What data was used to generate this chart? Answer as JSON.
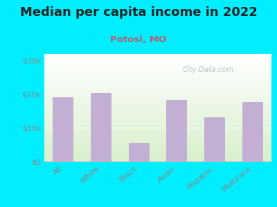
{
  "title": "Median per capita income in 2022",
  "subtitle": "Potosi, MO",
  "categories": [
    "All",
    "White",
    "Black",
    "Asian",
    "Hispanic",
    "Multirace"
  ],
  "values": [
    19000,
    20300,
    5500,
    18200,
    13200,
    17700
  ],
  "bar_color": "#c4afd4",
  "background_outer": "#00eeff",
  "title_color": "#222222",
  "subtitle_color": "#b06070",
  "tick_color": "#888888",
  "ylim": [
    0,
    32000
  ],
  "yticks": [
    0,
    10000,
    20000,
    30000
  ],
  "ytick_labels": [
    "$0",
    "$10k",
    "$20k",
    "$30k"
  ],
  "watermark": "City-Data.com",
  "title_fontsize": 13,
  "subtitle_fontsize": 9.5
}
